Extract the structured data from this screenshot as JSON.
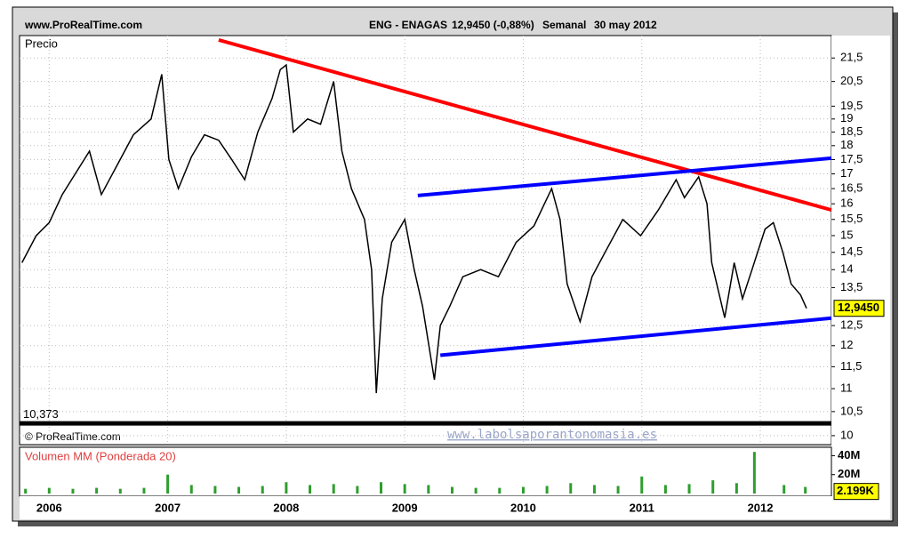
{
  "header": {
    "site": "www.ProRealTime.com",
    "symbol": "ENG - ENAGAS",
    "quote": "12,9450 (-0,88%)",
    "period": "Semanal",
    "date": "30 may 2012"
  },
  "chart_data": [
    {
      "type": "line",
      "label": "Precio",
      "color": "#000000",
      "log_scale": true,
      "grid": true,
      "x": [
        2005.77,
        2005.89,
        2006.0,
        2006.11,
        2006.22,
        2006.34,
        2006.44,
        2006.56,
        2006.71,
        2006.86,
        2006.95,
        2007.01,
        2007.09,
        2007.2,
        2007.31,
        2007.43,
        2007.54,
        2007.65,
        2007.76,
        2007.88,
        2007.95,
        2008.0,
        2008.06,
        2008.18,
        2008.29,
        2008.4,
        2008.47,
        2008.55,
        2008.66,
        2008.72,
        2008.76,
        2008.81,
        2008.89,
        2009.0,
        2009.08,
        2009.15,
        2009.25,
        2009.3,
        2009.38,
        2009.49,
        2009.64,
        2009.79,
        2009.94,
        2010.09,
        2010.24,
        2010.31,
        2010.37,
        2010.48,
        2010.58,
        2010.69,
        2010.84,
        2010.99,
        2011.14,
        2011.29,
        2011.36,
        2011.48,
        2011.55,
        2011.59,
        2011.7,
        2011.78,
        2011.85,
        2011.93,
        2012.04,
        2012.11,
        2012.19,
        2012.26,
        2012.34,
        2012.39
      ],
      "values": [
        14.2,
        15.0,
        15.4,
        16.3,
        17.0,
        17.8,
        16.3,
        17.2,
        18.4,
        19.0,
        20.8,
        17.5,
        16.5,
        17.6,
        18.4,
        18.2,
        17.5,
        16.8,
        18.5,
        19.8,
        21.0,
        21.2,
        18.5,
        19.0,
        18.8,
        20.5,
        17.8,
        16.5,
        15.5,
        14.0,
        10.9,
        13.2,
        14.8,
        15.5,
        14.0,
        13.0,
        11.2,
        12.5,
        13.0,
        13.8,
        14.0,
        13.8,
        14.8,
        15.3,
        16.5,
        15.5,
        13.6,
        12.6,
        13.8,
        14.5,
        15.5,
        15.0,
        15.8,
        16.8,
        16.2,
        16.9,
        16.0,
        14.2,
        12.7,
        14.2,
        13.2,
        14.0,
        15.2,
        15.4,
        14.5,
        13.6,
        13.3,
        12.945
      ],
      "xlim": [
        2005.75,
        2012.6
      ],
      "ylim": [
        9.82,
        22.5
      ],
      "xticks": [
        2006,
        2007,
        2008,
        2009,
        2010,
        2011,
        2012
      ],
      "yticks": [
        10,
        {
          "value": 10.5,
          "label": "10,5"
        },
        11,
        {
          "value": 11.5,
          "label": "11,5"
        },
        12,
        {
          "value": 12.5,
          "label": "12,5"
        },
        {
          "value": 13.5,
          "label": "13,5"
        },
        14,
        {
          "value": 14.5,
          "label": "14,5"
        },
        15,
        {
          "value": 15.5,
          "label": "15,5"
        },
        16,
        {
          "value": 16.5,
          "label": "16,5"
        },
        17,
        {
          "value": 17.5,
          "label": "17,5"
        },
        18,
        {
          "value": 18.5,
          "label": "18,5"
        },
        19,
        {
          "value": 19.5,
          "label": "19,5"
        },
        {
          "value": 20.5,
          "label": "20,5"
        },
        {
          "value": 21.5,
          "label": "21,5"
        }
      ],
      "last_value": 12.945,
      "last_value_label": "12,9450",
      "level": 10.373,
      "level_label": "10,373",
      "trendlines": [
        {
          "color": "#ff0000",
          "x": [
            2007.43,
            2012.6
          ],
          "values": [
            22.3,
            15.8
          ]
        },
        {
          "color": "#0000ff",
          "x": [
            2009.11,
            2012.6
          ],
          "values": [
            16.27,
            17.55
          ]
        },
        {
          "color": "#0000ff",
          "x": [
            2009.3,
            2012.6
          ],
          "values": [
            11.77,
            12.69
          ]
        }
      ],
      "copyright": "© ProRealTime.com",
      "watermark": "www.labolsaporantonomasia.es"
    },
    {
      "type": "bar",
      "label": "Volumen MM (Ponderada 20)",
      "color": "#2e9e2e",
      "x": [
        2005.8,
        2006.0,
        2006.2,
        2006.4,
        2006.6,
        2006.8,
        2007.0,
        2007.2,
        2007.4,
        2007.6,
        2007.8,
        2008.0,
        2008.2,
        2008.4,
        2008.6,
        2008.8,
        2009.0,
        2009.2,
        2009.4,
        2009.6,
        2009.8,
        2010.0,
        2010.2,
        2010.4,
        2010.6,
        2010.8,
        2011.0,
        2011.2,
        2011.4,
        2011.6,
        2011.8,
        2011.95,
        2012.2,
        2012.38
      ],
      "values": [
        5,
        6,
        5,
        6,
        5,
        6,
        20,
        9,
        8,
        7,
        8,
        12,
        9,
        10,
        8,
        12,
        10,
        9,
        7,
        6,
        6,
        7,
        8,
        11,
        9,
        8,
        18,
        9,
        10,
        14,
        11,
        44,
        9,
        7
      ],
      "xlim": [
        2005.75,
        2012.6
      ],
      "ylim": [
        0,
        47
      ],
      "yticks": [
        {
          "value": 40,
          "label": "40M"
        },
        {
          "value": 20,
          "label": "20M"
        }
      ],
      "last_value": 2.199,
      "last_value_label": "2.199K"
    }
  ]
}
